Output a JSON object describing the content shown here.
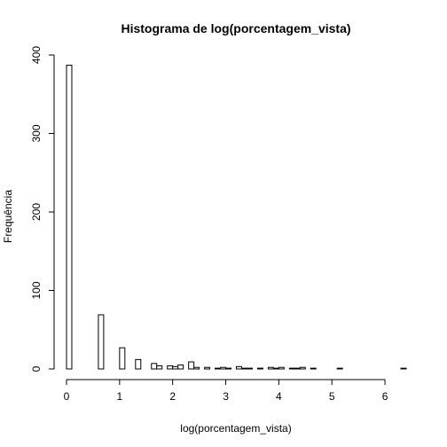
{
  "chart_data": {
    "type": "bar",
    "title": "Histograma de log(porcentagem_vista)",
    "xlabel": "log(porcentagem_vista)",
    "ylabel": "Frequência",
    "bin_width": 0.1,
    "xlim": [
      0,
      6.4
    ],
    "ylim": [
      0,
      400
    ],
    "x_ticks": [
      "0",
      "1",
      "2",
      "3",
      "4",
      "5",
      "6"
    ],
    "y_ticks": [
      "0",
      "100",
      "200",
      "300",
      "400"
    ],
    "grid": false,
    "legend": "none",
    "bins": [
      {
        "x0": 0.0,
        "x1": 0.1,
        "count": 387
      },
      {
        "x0": 0.6,
        "x1": 0.7,
        "count": 69
      },
      {
        "x0": 1.0,
        "x1": 1.1,
        "count": 27
      },
      {
        "x0": 1.3,
        "x1": 1.4,
        "count": 12
      },
      {
        "x0": 1.6,
        "x1": 1.7,
        "count": 7
      },
      {
        "x0": 1.7,
        "x1": 1.8,
        "count": 4
      },
      {
        "x0": 1.9,
        "x1": 2.0,
        "count": 4
      },
      {
        "x0": 2.0,
        "x1": 2.1,
        "count": 3
      },
      {
        "x0": 2.1,
        "x1": 2.2,
        "count": 5
      },
      {
        "x0": 2.3,
        "x1": 2.4,
        "count": 9
      },
      {
        "x0": 2.4,
        "x1": 2.5,
        "count": 2
      },
      {
        "x0": 2.6,
        "x1": 2.7,
        "count": 2
      },
      {
        "x0": 2.8,
        "x1": 2.9,
        "count": 1
      },
      {
        "x0": 2.9,
        "x1": 3.0,
        "count": 2
      },
      {
        "x0": 3.0,
        "x1": 3.1,
        "count": 1
      },
      {
        "x0": 3.2,
        "x1": 3.3,
        "count": 3
      },
      {
        "x0": 3.3,
        "x1": 3.4,
        "count": 1
      },
      {
        "x0": 3.4,
        "x1": 3.5,
        "count": 1
      },
      {
        "x0": 3.6,
        "x1": 3.7,
        "count": 1
      },
      {
        "x0": 3.8,
        "x1": 3.9,
        "count": 2
      },
      {
        "x0": 3.9,
        "x1": 4.0,
        "count": 1
      },
      {
        "x0": 4.0,
        "x1": 4.1,
        "count": 2
      },
      {
        "x0": 4.2,
        "x1": 4.3,
        "count": 1
      },
      {
        "x0": 4.3,
        "x1": 4.4,
        "count": 1
      },
      {
        "x0": 4.4,
        "x1": 4.5,
        "count": 2
      },
      {
        "x0": 4.6,
        "x1": 4.7,
        "count": 1
      },
      {
        "x0": 5.1,
        "x1": 5.2,
        "count": 1
      },
      {
        "x0": 6.3,
        "x1": 6.4,
        "count": 1
      }
    ]
  }
}
